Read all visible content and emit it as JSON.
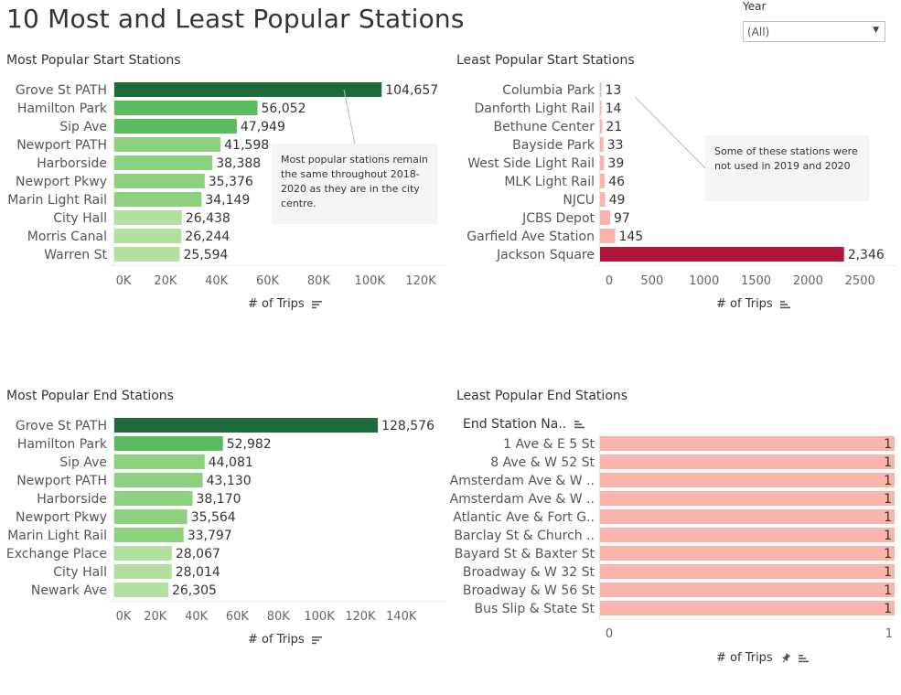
{
  "dashboard": {
    "title": "10 Most and Least Popular Stations"
  },
  "filter": {
    "label": "Year",
    "value": "(All)"
  },
  "colors": {
    "dark_green": "#1e6a3c",
    "mid_green": "#5cba5f",
    "light_green": "#8dd17e",
    "pale_green": "#b3e0a1",
    "dark_red": "#b0153a",
    "salmon": "#fbb4ac",
    "note_bg": "#f5f5f5"
  },
  "annotations": {
    "most_start": "Most popular stations remain the same throughout 2018-2020 as they are in the city centre.",
    "least_start": "Some of these stations were not used in 2019 and 2020"
  },
  "chart_data": [
    {
      "id": "most_start",
      "type": "bar",
      "orientation": "horizontal",
      "title": "Most Popular Start Stations",
      "xlabel": "# of Trips",
      "categories": [
        "Grove St PATH",
        "Hamilton Park",
        "Sip Ave",
        "Newport PATH",
        "Harborside",
        "Newport Pkwy",
        "Marin Light Rail",
        "City Hall",
        "Morris Canal",
        "Warren St"
      ],
      "values": [
        104657,
        56052,
        47949,
        41598,
        38388,
        35376,
        34149,
        26438,
        26244,
        25594
      ],
      "value_labels": [
        "104,657",
        "56,052",
        "47,949",
        "41,598",
        "38,388",
        "35,376",
        "34,149",
        "26,438",
        "26,244",
        "25,594"
      ],
      "xlim": [
        0,
        130000
      ],
      "ticks": [
        0,
        20000,
        40000,
        60000,
        80000,
        100000,
        120000
      ],
      "tick_labels": [
        "0K",
        "20K",
        "40K",
        "60K",
        "80K",
        "100K",
        "120K"
      ],
      "grid": false
    },
    {
      "id": "least_start",
      "type": "bar",
      "orientation": "horizontal",
      "title": "Least Popular Start Stations",
      "xlabel": "# of Trips",
      "categories": [
        "Columbia Park",
        "Danforth Light Rail",
        "Bethune Center",
        "Bayside Park",
        "West Side Light Rail",
        "MLK Light Rail",
        "NJCU",
        "JCBS Depot",
        "Garfield Ave Station",
        "Jackson Square"
      ],
      "values": [
        13,
        14,
        21,
        33,
        39,
        46,
        49,
        97,
        145,
        2346
      ],
      "value_labels": [
        "13",
        "14",
        "21",
        "33",
        "39",
        "46",
        "49",
        "97",
        "145",
        "2,346"
      ],
      "xlim": [
        0,
        2850
      ],
      "ticks": [
        0,
        500,
        1000,
        1500,
        2000,
        2500
      ],
      "tick_labels": [
        "0",
        "500",
        "1000",
        "1500",
        "2000",
        "2500"
      ],
      "grid": false
    },
    {
      "id": "most_end",
      "type": "bar",
      "orientation": "horizontal",
      "title": "Most Popular End Stations",
      "xlabel": "# of Trips",
      "categories": [
        "Grove St PATH",
        "Hamilton Park",
        "Sip Ave",
        "Newport PATH",
        "Harborside",
        "Newport Pkwy",
        "Marin Light Rail",
        "Exchange Place",
        "City Hall",
        "Newark Ave"
      ],
      "values": [
        128576,
        52982,
        44081,
        43130,
        38170,
        35564,
        33797,
        28067,
        28014,
        26305
      ],
      "value_labels": [
        "128,576",
        "52,982",
        "44,081",
        "43,130",
        "38,170",
        "35,564",
        "33,797",
        "28,067",
        "28,014",
        "26,305"
      ],
      "xlim": [
        0,
        162000
      ],
      "ticks": [
        0,
        20000,
        40000,
        60000,
        80000,
        100000,
        120000,
        140000
      ],
      "tick_labels": [
        "0K",
        "20K",
        "40K",
        "60K",
        "80K",
        "100K",
        "120K",
        "140K"
      ],
      "grid": false
    },
    {
      "id": "least_end",
      "type": "bar",
      "orientation": "horizontal",
      "title": "Least Popular End Stations",
      "xlabel": "# of Trips",
      "column_header": "End Station Na..",
      "categories": [
        "1 Ave & E 5 St",
        "8 Ave & W 52 St",
        "Amsterdam Ave & W ..",
        "Amsterdam Ave & W ..",
        "Atlantic Ave & Fort G..",
        "Barclay St & Church ..",
        "Bayard St & Baxter St",
        "Broadway & W 32 St",
        "Broadway & W 56 St",
        "Bus Slip & State St"
      ],
      "values": [
        1,
        1,
        1,
        1,
        1,
        1,
        1,
        1,
        1,
        1
      ],
      "value_labels": [
        "1",
        "1",
        "1",
        "1",
        "1",
        "1",
        "1",
        "1",
        "1",
        "1"
      ],
      "xlim": [
        0,
        1
      ],
      "ticks": [
        0,
        1
      ],
      "tick_labels": [
        "0",
        "1"
      ],
      "grid": false
    }
  ]
}
